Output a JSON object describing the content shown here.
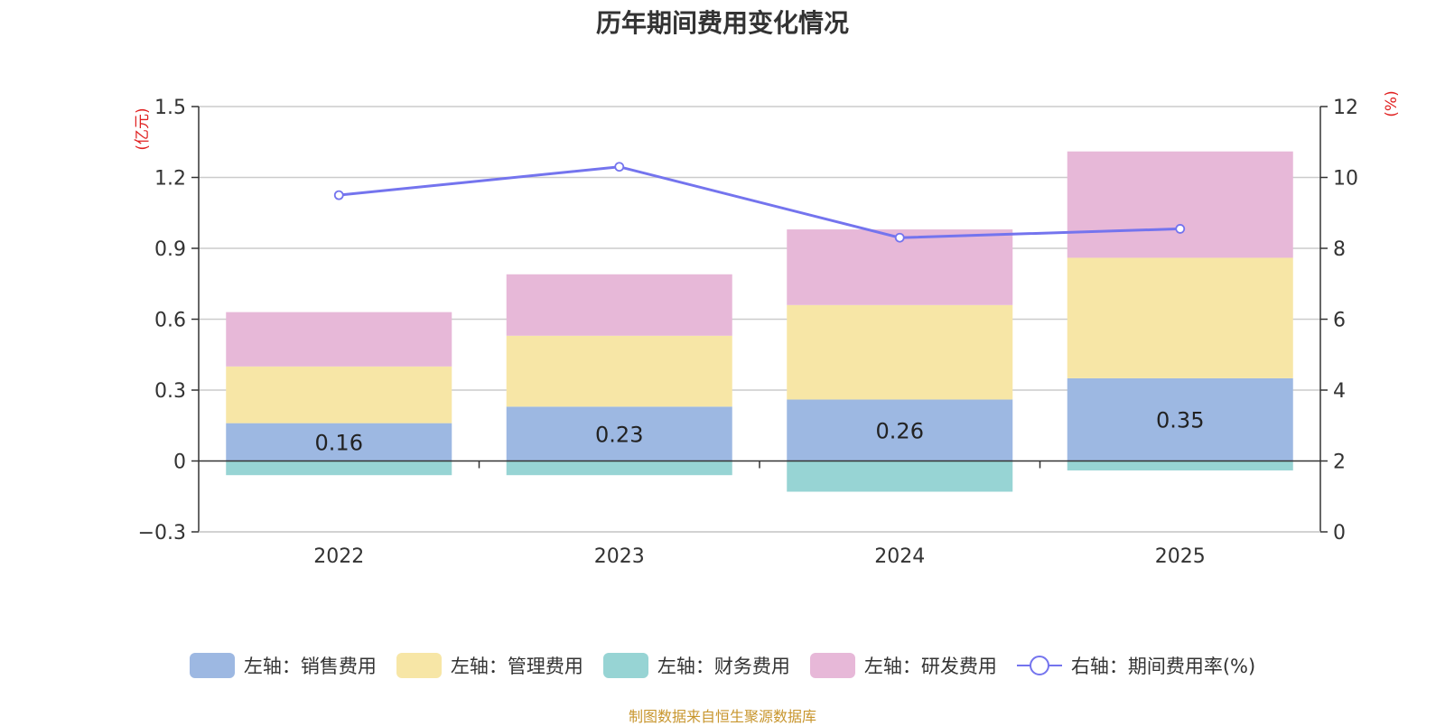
{
  "chart_data": {
    "type": "bar",
    "title": "历年期间费用变化情况",
    "categories": [
      "2022",
      "2023",
      "2024",
      "2025"
    ],
    "left_axis": {
      "unit_label": "(亿元)",
      "ylim": [
        -0.3,
        1.5
      ],
      "ticks": [
        "-0.3",
        "0",
        "0.3",
        "0.6",
        "0.9",
        "1.2",
        "1.5"
      ]
    },
    "right_axis": {
      "unit_label": "(%)",
      "ylim": [
        0,
        12
      ],
      "ticks": [
        "0",
        "2",
        "4",
        "6",
        "8",
        "10",
        "12"
      ]
    },
    "series": [
      {
        "name": "左轴：销售费用",
        "type": "bar",
        "axis": "left",
        "color": "#9db8e2",
        "values": [
          0.16,
          0.23,
          0.26,
          0.35
        ],
        "labels": [
          "0.16",
          "0.23",
          "0.26",
          "0.35"
        ]
      },
      {
        "name": "左轴：管理费用",
        "type": "bar",
        "axis": "left",
        "color": "#f7e6a6",
        "values": [
          0.24,
          0.3,
          0.4,
          0.51
        ]
      },
      {
        "name": "左轴：财务费用",
        "type": "bar",
        "axis": "left",
        "color": "#97d4d4",
        "values": [
          -0.06,
          -0.06,
          -0.13,
          -0.04
        ]
      },
      {
        "name": "左轴：研发费用",
        "type": "bar",
        "axis": "left",
        "color": "#e7b8d8",
        "values": [
          0.23,
          0.26,
          0.32,
          0.45
        ]
      },
      {
        "name": "右轴：期间费用率(%)",
        "type": "line",
        "axis": "right",
        "color": "#7474ee",
        "values": [
          9.5,
          10.3,
          8.3,
          8.55
        ]
      }
    ],
    "grid": true,
    "legend_position": "bottom"
  },
  "source_note": "制图数据来自恒生聚源数据库"
}
